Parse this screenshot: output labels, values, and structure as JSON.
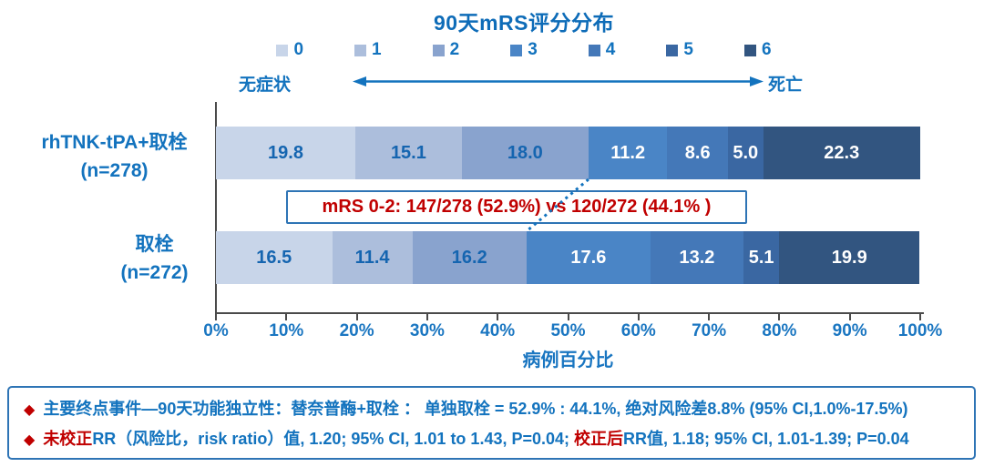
{
  "title": "90天mRS评分分布",
  "chart_data": {
    "type": "bar",
    "stacked": true,
    "orientation": "horizontal",
    "title": "90天mRS评分分布",
    "xlabel": "病例百分比",
    "xlim": [
      0,
      100
    ],
    "xticks": [
      "0%",
      "10%",
      "20%",
      "30%",
      "40%",
      "50%",
      "60%",
      "70%",
      "80%",
      "90%",
      "100%"
    ],
    "legend_position": "top",
    "legend_labels": [
      "0",
      "1",
      "2",
      "3",
      "4",
      "5",
      "6"
    ],
    "series_colors": [
      "#c8d5e9",
      "#acbedc",
      "#89a3ce",
      "#4a85c6",
      "#4478b8",
      "#3a67a2",
      "#325580"
    ],
    "value_label_colors": [
      "#1565b0",
      "#1565b0",
      "#1565b0",
      "#ffffff",
      "#ffffff",
      "#ffffff",
      "#ffffff"
    ],
    "groups": [
      {
        "label": "rhTNK-tPA+取栓",
        "sublabel": "(n=278)",
        "values": [
          19.8,
          15.1,
          18.0,
          11.2,
          8.6,
          5.0,
          22.3
        ]
      },
      {
        "label": "取栓",
        "sublabel": "(n=272)",
        "values": [
          16.5,
          11.4,
          16.2,
          17.6,
          13.2,
          5.1,
          19.9
        ]
      }
    ],
    "scale_labels": {
      "left": "无症状",
      "right": "死亡"
    },
    "annotation": {
      "text": "mRS 0-2: 147/278 (52.9%) vs 120/272 (44.1% )"
    },
    "connector": {
      "from_pct": 52.9,
      "to_pct": 44.1
    }
  },
  "notes": {
    "line1": {
      "bullet": "◆",
      "text": "主要终点事件—90天功能独立性：替奈普酶+取栓 ： 单独取栓 = 52.9% : 44.1%, 绝对风险差8.8% (95% CI,1.0%-17.5%)"
    },
    "line2": {
      "bullet": "◆",
      "seg1_red": "未校正",
      "seg2_blue": "RR（风险比，risk ratio）值, 1.20; 95% CI, 1.01 to 1.43, P=0.04; ",
      "seg3_red": "校正后",
      "seg4_blue": "RR值, 1.18; 95% CI, 1.01-1.39; P=0.04"
    }
  },
  "colors": {
    "text_blue": "#1373be",
    "title_blue": "#0e6cb8",
    "highlight_red": "#c00000",
    "box_border_blue": "#2e74b5",
    "axis_gray": "#4a4a4a"
  }
}
